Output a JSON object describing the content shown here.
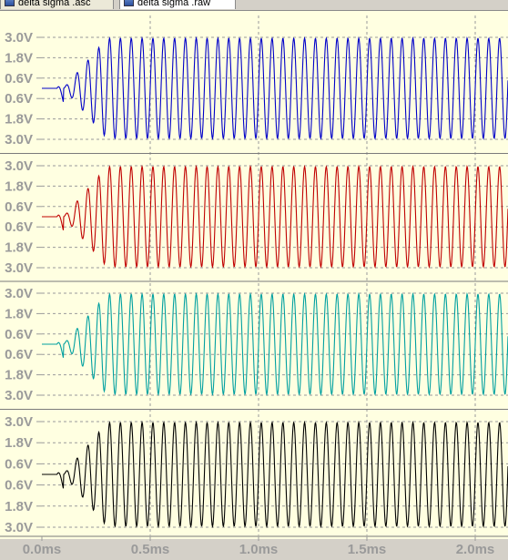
{
  "tabs": [
    {
      "label": "delta sigma .asc",
      "active": false
    },
    {
      "label": "delta sigma .raw",
      "active": true
    }
  ],
  "colors": {
    "background": "#ffffe1",
    "grid": "#9a9a9a",
    "label": "#9a9a9a",
    "trace1": "#0000c8",
    "trace2": "#c00000",
    "trace3": "#00a0a0",
    "trace4": "#000000"
  },
  "chart_data": [
    {
      "type": "line",
      "panel": 1,
      "y_tick_labels": [
        "3.0V",
        "1.8V",
        "0.6V",
        "0.6V",
        "1.8V",
        "3.0V"
      ],
      "x_tick_labels": [
        "0.0ms",
        "0.5ms",
        "1.0ms",
        "1.5ms",
        "2.0ms"
      ],
      "series": [
        {
          "color": "#0000c8",
          "amplitude": 2.95,
          "start_ms": 0.1,
          "settle_ms": 0.3
        }
      ]
    },
    {
      "type": "line",
      "panel": 2,
      "y_tick_labels": [
        "3.0V",
        "1.8V",
        "0.6V",
        "0.6V",
        "1.8V",
        "3.0V"
      ],
      "x_tick_labels": [
        "0.0ms",
        "0.5ms",
        "1.0ms",
        "1.5ms",
        "2.0ms"
      ],
      "series": [
        {
          "color": "#c00000",
          "amplitude": 2.95,
          "start_ms": 0.1,
          "settle_ms": 0.3
        }
      ]
    },
    {
      "type": "line",
      "panel": 3,
      "y_tick_labels": [
        "3.0V",
        "1.8V",
        "0.6V",
        "0.6V",
        "1.8V",
        "3.0V"
      ],
      "x_tick_labels": [
        "0.0ms",
        "0.5ms",
        "1.0ms",
        "1.5ms",
        "2.0ms"
      ],
      "series": [
        {
          "color": "#00a0a0",
          "amplitude": 2.95,
          "start_ms": 0.1,
          "settle_ms": 0.3
        }
      ]
    },
    {
      "type": "line",
      "panel": 4,
      "y_tick_labels": [
        "3.0V",
        "1.8V",
        "0.6V",
        "0.6V",
        "1.8V",
        "3.0V"
      ],
      "x_tick_labels": [
        "0.0ms",
        "0.5ms",
        "1.0ms",
        "1.5ms",
        "2.0ms"
      ],
      "series": [
        {
          "color": "#000000",
          "amplitude": 2.95,
          "start_ms": 0.1,
          "settle_ms": 0.3
        }
      ]
    }
  ],
  "x_axis": {
    "min_ms": 0.0,
    "max_ms": 2.15,
    "tick_labels": [
      "0.0ms",
      "0.5ms",
      "1.0ms",
      "1.5ms",
      "2.0ms"
    ],
    "tick_values": [
      0.0,
      0.5,
      1.0,
      1.5,
      2.0
    ]
  },
  "y_axis": {
    "min_v": -3.0,
    "max_v": 3.0,
    "tick_values": [
      3.0,
      1.8,
      0.6,
      -0.6,
      -1.8,
      -3.0
    ],
    "tick_labels": [
      "3.0V",
      "1.8V",
      "0.6V",
      "0.6V",
      "1.8V",
      "3.0V"
    ]
  },
  "signal": {
    "frequency_khz": 20,
    "amplitude_v": 2.95
  }
}
